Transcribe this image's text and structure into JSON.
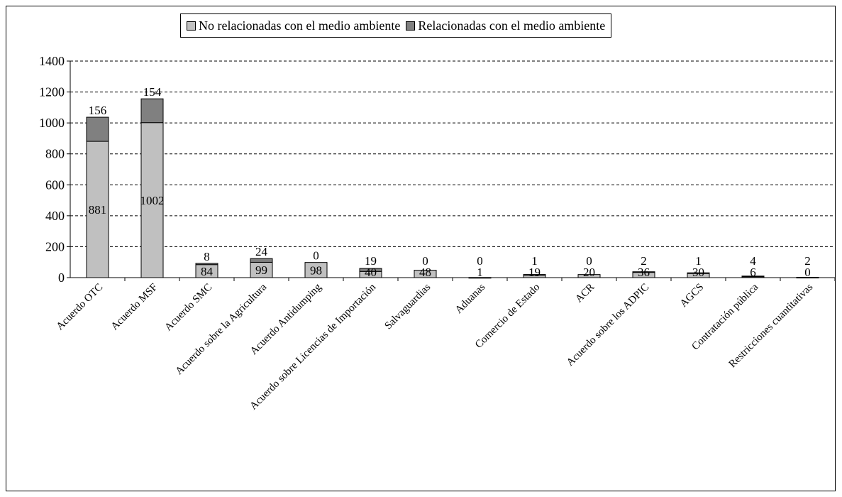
{
  "colors": {
    "non_env": "#c0c0c0",
    "env": "#808080",
    "grid": "#000000"
  },
  "chart_data": {
    "type": "bar",
    "stacked": true,
    "title": "",
    "xlabel": "",
    "ylabel": "",
    "ylim": [
      0,
      1400
    ],
    "yticks": [
      0,
      200,
      400,
      600,
      800,
      1000,
      1200,
      1400
    ],
    "grid": "horizontal dashed",
    "legend_position": "top",
    "categories": [
      "Acuerdo OTC",
      "Acuerdo MSF",
      "Acuerdo SMC",
      "Acuerdo sobre la Agricultura",
      "Acuerdo Antidumping",
      "Acuerdo sobre Licencias de Importación",
      "Salvaguardias",
      "Aduanas",
      "Comercio de Estado",
      "ACR",
      "Acuerdo sobre los ADPIC",
      "AGCS",
      "Contratación pública",
      "Restricciones cuantitativas"
    ],
    "series": [
      {
        "name": "No relacionadas con el medio ambiente",
        "values": [
          881,
          1002,
          84,
          99,
          98,
          40,
          48,
          1,
          19,
          20,
          36,
          30,
          6,
          0
        ]
      },
      {
        "name": "Relacionadas con el medio ambiente",
        "values": [
          156,
          154,
          8,
          24,
          0,
          19,
          0,
          0,
          1,
          0,
          2,
          1,
          4,
          2
        ]
      }
    ]
  }
}
